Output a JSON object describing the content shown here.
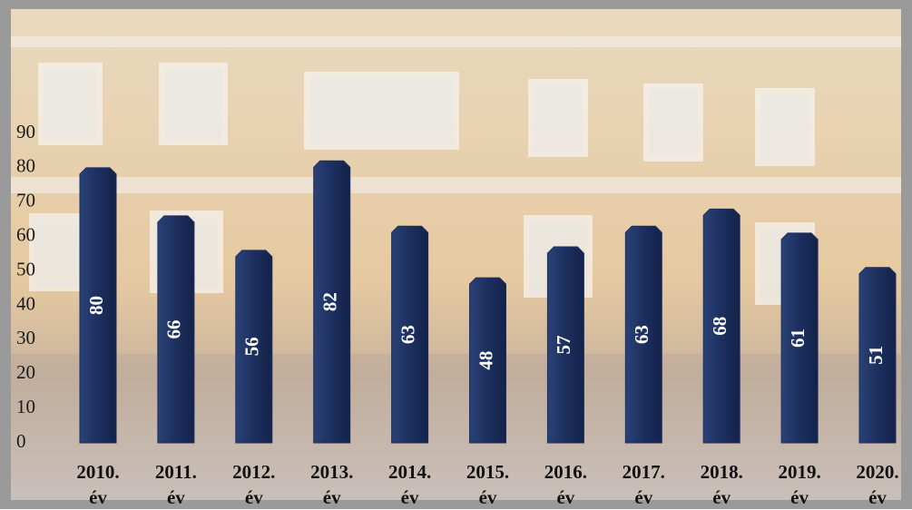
{
  "chart_data": {
    "type": "bar",
    "categories": [
      "2010. év",
      "2011. év",
      "2012. év",
      "2013. év",
      "2014. év",
      "2015. év",
      "2016. év",
      "2017. év",
      "2018. év",
      "2019. év",
      "2020. év"
    ],
    "values": [
      80,
      66,
      56,
      82,
      63,
      48,
      57,
      63,
      68,
      61,
      51
    ],
    "color": "#1c2f5e",
    "ylim": [
      0,
      90
    ],
    "yticks": [
      0,
      10,
      20,
      30,
      40,
      50,
      60,
      70,
      80,
      90
    ],
    "grid": false
  }
}
